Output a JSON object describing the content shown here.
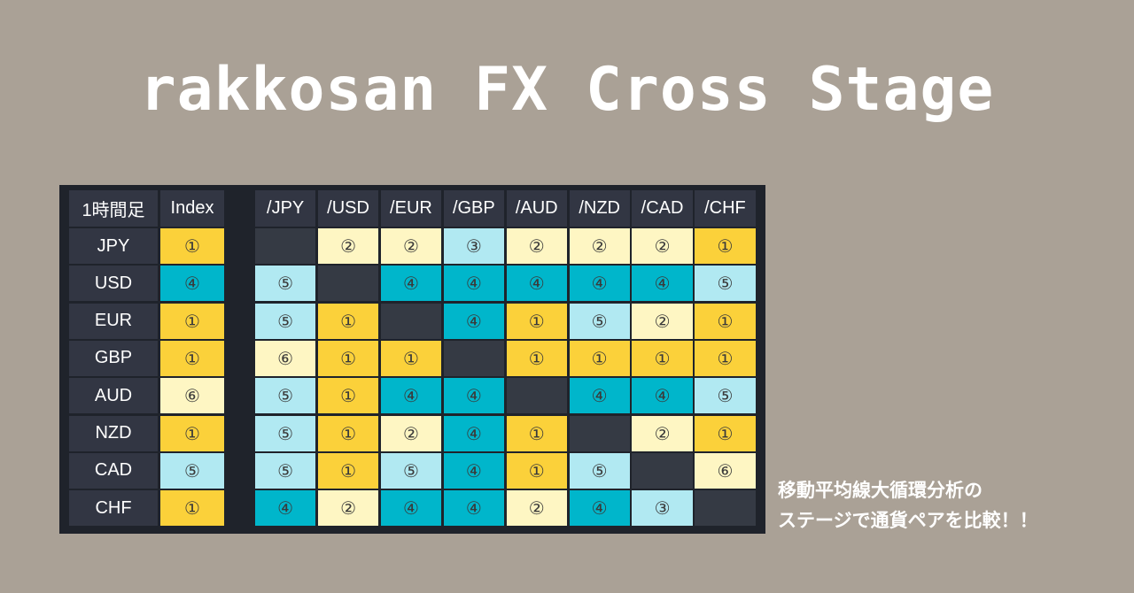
{
  "title": "rakkosan FX Cross Stage",
  "subtitle": {
    "line1": "移動平均線大循環分析の",
    "line2": "ステージで通貨ペアを比較！！"
  },
  "table": {
    "corner_label": "1時間足",
    "index_header": "Index",
    "column_headers": [
      "/JPY",
      "/USD",
      "/EUR",
      "/GBP",
      "/AUD",
      "/NZD",
      "/CAD",
      "/CHF"
    ],
    "rows": [
      {
        "label": "JPY",
        "index": 1,
        "cells": [
          null,
          2,
          2,
          3,
          2,
          2,
          2,
          1
        ]
      },
      {
        "label": "USD",
        "index": 4,
        "cells": [
          5,
          null,
          4,
          4,
          4,
          4,
          4,
          5
        ]
      },
      {
        "label": "EUR",
        "index": 1,
        "cells": [
          5,
          1,
          null,
          4,
          1,
          5,
          2,
          1
        ]
      },
      {
        "label": "GBP",
        "index": 1,
        "cells": [
          6,
          1,
          1,
          null,
          1,
          1,
          1,
          1
        ]
      },
      {
        "label": "AUD",
        "index": 6,
        "cells": [
          5,
          1,
          4,
          4,
          null,
          4,
          4,
          5
        ]
      },
      {
        "label": "NZD",
        "index": 1,
        "cells": [
          5,
          1,
          2,
          4,
          1,
          null,
          2,
          1
        ]
      },
      {
        "label": "CAD",
        "index": 5,
        "cells": [
          5,
          1,
          5,
          4,
          1,
          5,
          null,
          6
        ]
      },
      {
        "label": "CHF",
        "index": 1,
        "cells": [
          4,
          2,
          4,
          4,
          2,
          4,
          3,
          null
        ]
      }
    ],
    "stage_symbols": {
      "1": "①",
      "2": "②",
      "3": "③",
      "4": "④",
      "5": "⑤",
      "6": "⑥"
    },
    "stage_colors": {
      "1": "#fbd13a",
      "2": "#fef6c3",
      "3": "#b1e9f2",
      "4": "#00b6cb",
      "5": "#b1e9f2",
      "6": "#fef6c3"
    }
  }
}
